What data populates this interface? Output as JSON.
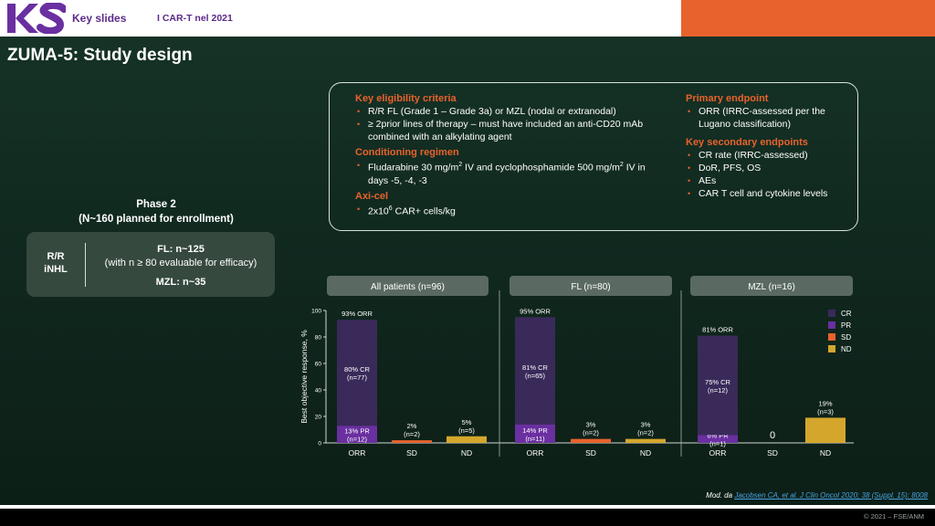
{
  "header": {
    "logo_text": "KS",
    "section": "Key slides",
    "topic": "I CAR-T nel 2021",
    "accent_color": "#e8622c",
    "brand_color": "#5b2a8a"
  },
  "title": "ZUMA-5: Study design",
  "criteria": {
    "eligibility": {
      "heading": "Key eligibility criteria",
      "items": [
        "R/R FL (Grade 1 – Grade 3a) or MZL (nodal or extranodal)",
        "≥ 2prior lines of therapy – must have included an anti-CD20 mAb combined with an alkylating agent"
      ]
    },
    "conditioning": {
      "heading": "Conditioning regimen",
      "item_part1": "Fludarabine 30 mg/m",
      "item_sup1": "2",
      "item_part2": " IV and cyclophosphamide 500 mg/m",
      "item_sup2": "2",
      "item_part3": " IV in days -5, -4, -3"
    },
    "axicel": {
      "heading": "Axi-cel",
      "item_part1": "2x10",
      "item_sup": "6",
      "item_part2": " CAR+ cells/kg"
    },
    "primary": {
      "heading": "Primary endpoint",
      "items": [
        "ORR (IRRC-assessed per the Lugano classification)"
      ]
    },
    "secondary": {
      "heading": "Key secondary endpoints",
      "items": [
        "CR rate (IRRC-assessed)",
        "DoR, PFS, OS",
        "AEs",
        "CAR T cell and cytokine levels"
      ]
    }
  },
  "phase": {
    "title_line1": "Phase 2",
    "title_line2": "(N~160 planned for enrollment)",
    "population_line1": "R/R",
    "population_line2": "iNHL",
    "fl": "FL: n~125",
    "fl_note": "(with n ≥ 80 evaluable for efficacy)",
    "mzl": "MZL: n~35"
  },
  "chart_data": {
    "type": "bar",
    "stacked": true,
    "ylabel": "Best objective response, %",
    "ylim": [
      0,
      100
    ],
    "yticks": [
      0,
      20,
      40,
      60,
      80,
      100
    ],
    "legend": {
      "placement": "top-right",
      "items": [
        {
          "label": "CR",
          "color": "#3a2a5a"
        },
        {
          "label": "PR",
          "color": "#6a2fa0"
        },
        {
          "label": "SD",
          "color": "#e8622c"
        },
        {
          "label": "ND",
          "color": "#d4a72c"
        }
      ]
    },
    "panels": [
      {
        "title": "All patients (n=96)",
        "bars": [
          {
            "category": "ORR",
            "segments": [
              {
                "name": "PR",
                "value": 13,
                "label_line1": "13% PR",
                "label_line2": "(n=12)"
              },
              {
                "name": "CR",
                "value": 80,
                "label_line1": "80% CR",
                "label_line2": "(n=77)"
              }
            ],
            "top_label_line1": "93% ORR",
            "top_label_line2": ""
          },
          {
            "category": "SD",
            "segments": [
              {
                "name": "SD",
                "value": 2
              }
            ],
            "top_label_line1": "2%",
            "top_label_line2": "(n=2)"
          },
          {
            "category": "ND",
            "segments": [
              {
                "name": "ND",
                "value": 5
              }
            ],
            "top_label_line1": "5%",
            "top_label_line2": "(n=5)"
          }
        ]
      },
      {
        "title": "FL (n=80)",
        "bars": [
          {
            "category": "ORR",
            "segments": [
              {
                "name": "PR",
                "value": 14,
                "label_line1": "14% PR",
                "label_line2": "(n=11)"
              },
              {
                "name": "CR",
                "value": 81,
                "label_line1": "81% CR",
                "label_line2": "(n=65)"
              }
            ],
            "top_label_line1": "95% ORR",
            "top_label_line2": ""
          },
          {
            "category": "SD",
            "segments": [
              {
                "name": "SD",
                "value": 3
              }
            ],
            "top_label_line1": "3%",
            "top_label_line2": "(n=2)"
          },
          {
            "category": "ND",
            "segments": [
              {
                "name": "ND",
                "value": 3
              }
            ],
            "top_label_line1": "3%",
            "top_label_line2": "(n=2)"
          }
        ]
      },
      {
        "title": "MZL (n=16)",
        "bars": [
          {
            "category": "ORR",
            "segments": [
              {
                "name": "PR",
                "value": 6,
                "label_line1": "6% PR",
                "label_line2": "(n=1)"
              },
              {
                "name": "CR",
                "value": 75,
                "label_line1": "75% CR",
                "label_line2": "(n=12)"
              }
            ],
            "top_label_line1": "81% ORR",
            "top_label_line2": ""
          },
          {
            "category": "SD",
            "segments": [],
            "top_label_line1": "0",
            "top_label_line2": ""
          },
          {
            "category": "ND",
            "segments": [
              {
                "name": "ND",
                "value": 19
              }
            ],
            "top_label_line1": "19%",
            "top_label_line2": "(n=3)"
          }
        ]
      }
    ]
  },
  "citation": {
    "prefix": "Mod. da ",
    "link": "Jacobsen CA, et al. J Clin Oncol 2020; 38 (Suppl. 15): 8008"
  },
  "copyright": "© 2021 – FSE/ANM"
}
